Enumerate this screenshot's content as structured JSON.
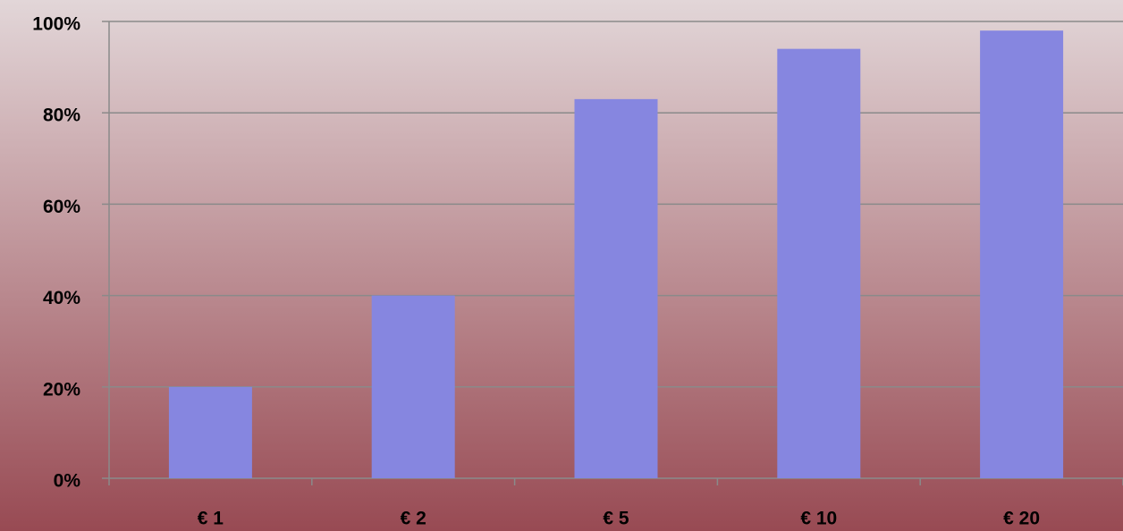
{
  "chart_data": {
    "type": "bar",
    "categories": [
      "€ 1",
      "€ 2",
      "€ 5",
      "€ 10",
      "€ 20"
    ],
    "values": [
      20,
      40,
      83,
      94,
      98
    ],
    "color": "#8686e0",
    "ylim": [
      0,
      100
    ],
    "yticks": [
      {
        "value": 0,
        "label": "0%"
      },
      {
        "value": 20,
        "label": "20%"
      },
      {
        "value": 40,
        "label": "40%"
      },
      {
        "value": 60,
        "label": "60%"
      },
      {
        "value": 80,
        "label": "80%"
      },
      {
        "value": 100,
        "label": "100%"
      }
    ],
    "grid": true
  }
}
